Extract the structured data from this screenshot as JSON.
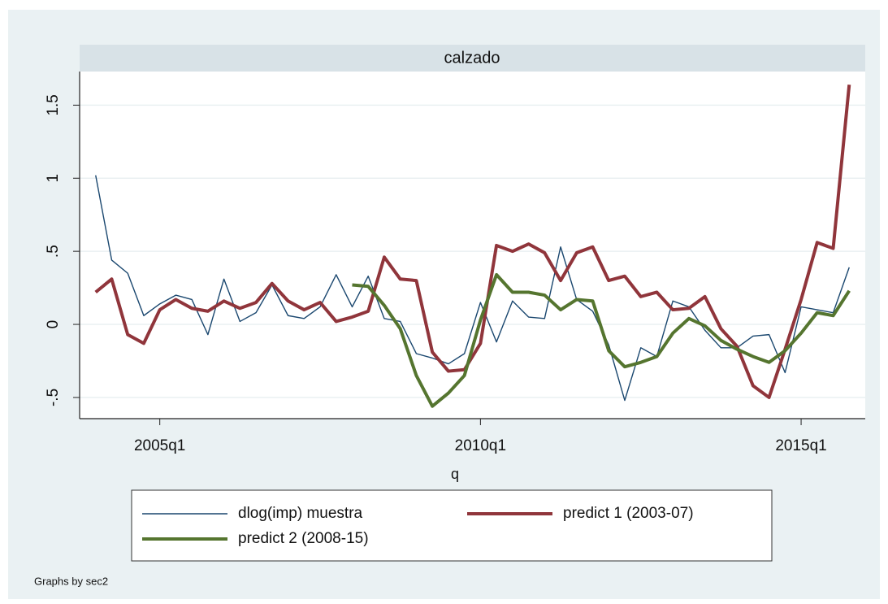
{
  "chart_data": {
    "type": "line",
    "title": "calzado",
    "x_label": "q",
    "note": "Graphs by sec2",
    "x": [
      176,
      177,
      178,
      179,
      180,
      181,
      182,
      183,
      184,
      185,
      186,
      187,
      188,
      189,
      190,
      191,
      192,
      193,
      194,
      195,
      196,
      197,
      198,
      199,
      200,
      201,
      202,
      203,
      204,
      205,
      206,
      207,
      208,
      209,
      210,
      211,
      212,
      213,
      214,
      215,
      216,
      217,
      218,
      219,
      220,
      221,
      222,
      223
    ],
    "xlim": [
      175,
      224
    ],
    "xticks": [
      {
        "value": 180,
        "label": "2005q1"
      },
      {
        "value": 200,
        "label": "2010q1"
      },
      {
        "value": 220,
        "label": "2015q1"
      }
    ],
    "ylim": [
      -0.645,
      1.73
    ],
    "yticks": [
      {
        "value": -0.5,
        "label": "-.5"
      },
      0,
      {
        "value": 0.5,
        "label": ".5"
      },
      1,
      1.5
    ],
    "grid": true,
    "series": [
      {
        "name": "dlog(imp) muestra",
        "color": "#1a476f",
        "width": 1.4,
        "values": [
          1.02,
          0.44,
          0.35,
          0.06,
          0.14,
          0.2,
          0.17,
          -0.07,
          0.31,
          0.02,
          0.08,
          0.27,
          0.06,
          0.04,
          0.12,
          0.34,
          0.12,
          0.33,
          0.04,
          0.02,
          -0.2,
          -0.23,
          -0.27,
          -0.2,
          0.15,
          -0.12,
          0.16,
          0.05,
          0.04,
          0.53,
          0.17,
          0.09,
          -0.14,
          -0.52,
          -0.16,
          -0.22,
          0.16,
          0.12,
          -0.04,
          -0.16,
          -0.16,
          -0.08,
          -0.07,
          -0.33,
          0.12,
          0.1,
          0.08,
          0.39
        ]
      },
      {
        "name": "predict 1 (2003-07)",
        "color": "#90353b",
        "width": 4,
        "values": [
          0.22,
          0.31,
          -0.07,
          -0.13,
          0.1,
          0.17,
          0.11,
          0.09,
          0.16,
          0.11,
          0.15,
          0.28,
          0.16,
          0.1,
          0.15,
          0.02,
          0.05,
          0.09,
          0.46,
          0.31,
          0.3,
          -0.19,
          -0.32,
          -0.31,
          -0.13,
          0.54,
          0.5,
          0.55,
          0.49,
          0.3,
          0.49,
          0.53,
          0.3,
          0.33,
          0.19,
          0.22,
          0.1,
          0.11,
          0.19,
          -0.03,
          -0.15,
          -0.42,
          -0.5,
          -0.17,
          0.17,
          0.56,
          0.52,
          1.64
        ]
      },
      {
        "name": "predict 2 (2008-15)",
        "color": "#55752f",
        "width": 4,
        "values": [
          null,
          null,
          null,
          null,
          null,
          null,
          null,
          null,
          null,
          null,
          null,
          null,
          null,
          null,
          null,
          null,
          0.27,
          0.26,
          0.13,
          -0.03,
          -0.35,
          -0.56,
          -0.47,
          -0.35,
          0.03,
          0.34,
          0.22,
          0.22,
          0.2,
          0.1,
          0.17,
          0.16,
          -0.18,
          -0.29,
          -0.26,
          -0.22,
          -0.06,
          0.04,
          -0.01,
          -0.11,
          -0.17,
          -0.22,
          -0.26,
          -0.18,
          -0.06,
          0.08,
          0.06,
          0.23
        ]
      }
    ]
  }
}
